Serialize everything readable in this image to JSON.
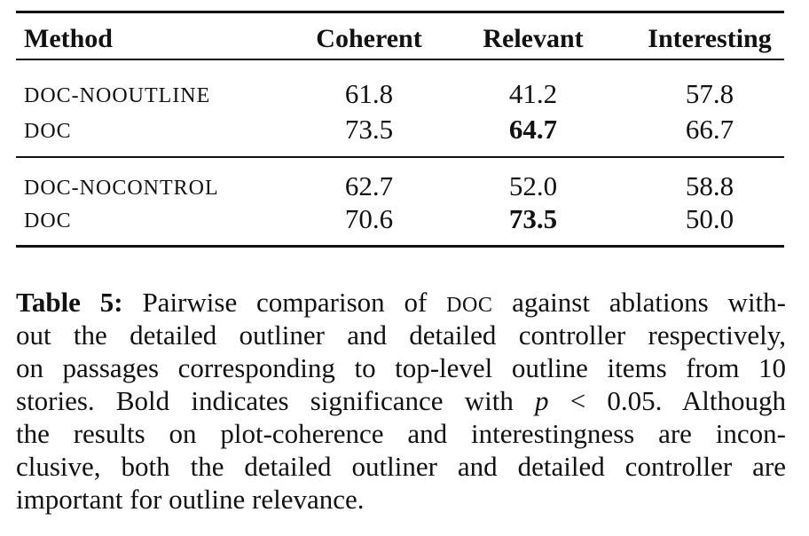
{
  "table": {
    "headers": [
      "Method",
      "Coherent",
      "Relevant",
      "Interesting"
    ],
    "groups": [
      [
        [
          "DOC-NOOUTLINE",
          "61.8",
          "41.2",
          "57.8"
        ],
        [
          "DOC",
          "73.5",
          "64.7",
          "66.7"
        ]
      ],
      [
        [
          "DOC-NOCONTROL",
          "62.7",
          "52.0",
          "58.8"
        ],
        [
          "DOC",
          "70.6",
          "73.5",
          "50.0"
        ]
      ]
    ]
  },
  "caption": {
    "label": "Table 5:",
    "lines": [
      [
        " Pairwise comparison of ",
        "DOC",
        " against ablations with-"
      ],
      [
        "out the detailed outliner and detailed controller respectively,"
      ],
      [
        "on passages corresponding to top-level outline items from 10"
      ],
      [
        "stories. Bold indicates significance with ",
        "p",
        " < 0.05. Although"
      ],
      [
        "the results on plot-coherence and interestingness are incon-"
      ],
      [
        "clusive, both the detailed outliner and detailed controller are"
      ],
      [
        "important for outline relevance."
      ]
    ]
  }
}
